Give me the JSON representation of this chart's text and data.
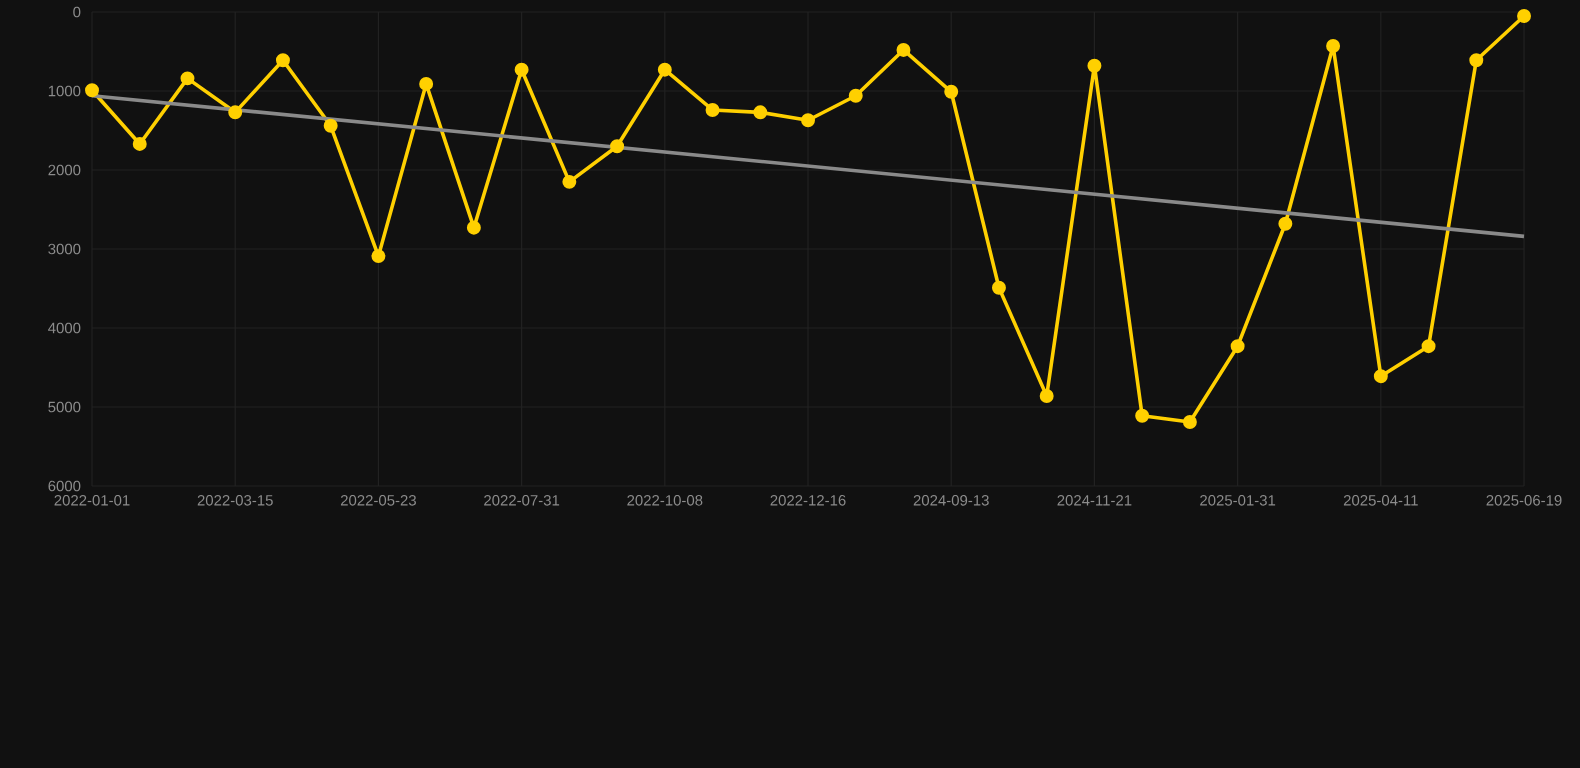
{
  "chart_data": {
    "type": "line",
    "categories": [
      "2022-01-01",
      null,
      null,
      "2022-03-15",
      null,
      null,
      "2022-05-23",
      null,
      null,
      "2022-07-31",
      null,
      null,
      "2022-10-08",
      null,
      null,
      "2022-12-16",
      null,
      null,
      "2024-09-13",
      null,
      null,
      "2024-11-21",
      null,
      null,
      "2025-01-31",
      null,
      null,
      "2025-04-11",
      null,
      null,
      "2025-06-19"
    ],
    "series": [
      {
        "color": "#ffd000",
        "marker": "circle",
        "values": [
          990,
          1670,
          840,
          1270,
          610,
          1440,
          3090,
          910,
          2730,
          730,
          2150,
          1700,
          730,
          1240,
          1270,
          1370,
          1060,
          480,
          1010,
          3490,
          4860,
          680,
          5110,
          5190,
          4230,
          2680,
          430,
          4610,
          4230,
          610,
          50
        ]
      },
      {
        "type": "line",
        "color": "#8a8a8a",
        "marker": "none",
        "values": [
          1060,
          null,
          null,
          null,
          null,
          null,
          null,
          null,
          null,
          null,
          null,
          null,
          null,
          null,
          null,
          null,
          null,
          null,
          null,
          null,
          null,
          null,
          null,
          null,
          null,
          null,
          null,
          null,
          null,
          null,
          2840
        ]
      }
    ],
    "ylim": [
      6000,
      0
    ],
    "yticks": [
      0,
      1000,
      2000,
      3000,
      4000,
      5000,
      6000
    ],
    "grid": true,
    "line_style": "solid",
    "legend": false
  }
}
